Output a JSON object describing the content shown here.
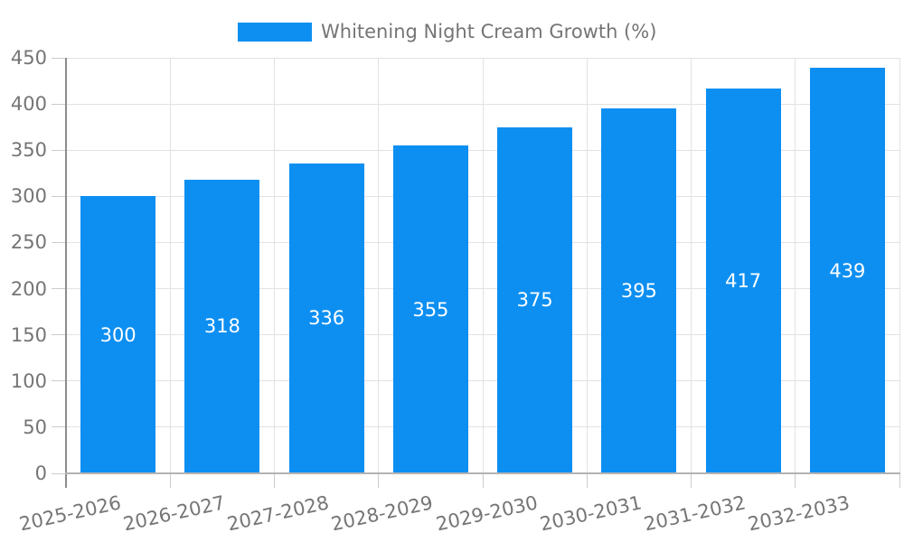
{
  "chart_data": {
    "type": "bar",
    "title": "Whitening Night Cream Growth (%)",
    "legend_position": "top-center",
    "categories": [
      "2025-2026",
      "2026-2027",
      "2027-2028",
      "2028-2029",
      "2029-2030",
      "2030-2031",
      "2031-2032",
      "2032-2033"
    ],
    "values": [
      300,
      318,
      336,
      355,
      375,
      395,
      417,
      439
    ],
    "xlabel": "",
    "ylabel": "",
    "ylim": [
      0,
      450
    ],
    "ytick_step": 50,
    "grid": true,
    "x_label_rotation_deg": -12.5,
    "colors": {
      "bar": "#0d8ff2",
      "bar_label": "#ffffff",
      "axis_text": "#757575",
      "gridline": "#e2e2e2",
      "tick": "#cccccc",
      "y_axis_line": "#8c8c8c",
      "x_axis_line": "#b3b3b3",
      "background": "#ffffff"
    }
  }
}
